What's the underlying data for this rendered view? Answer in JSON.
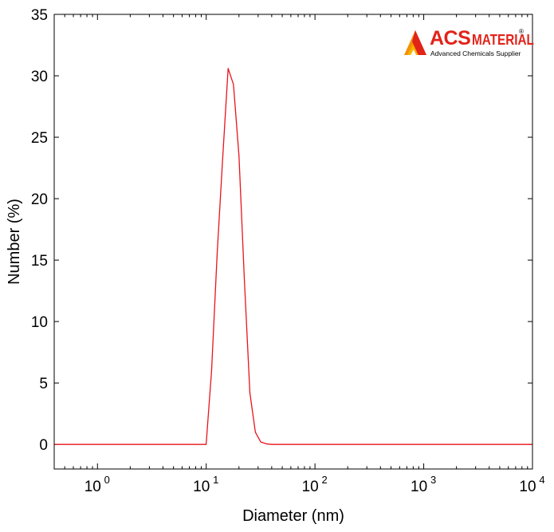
{
  "chart_data": {
    "type": "line",
    "xscale": "log",
    "xlim": [
      0.4,
      10000
    ],
    "ylim": [
      -2,
      35
    ],
    "xlabel": "Diameter (nm)",
    "ylabel": "Number (%)",
    "grid": false,
    "x_ticks": [
      {
        "value": 1,
        "base": "10",
        "exp": "0"
      },
      {
        "value": 10,
        "base": "10",
        "exp": "1"
      },
      {
        "value": 100,
        "base": "10",
        "exp": "2"
      },
      {
        "value": 1000,
        "base": "10",
        "exp": "3"
      },
      {
        "value": 10000,
        "base": "10",
        "exp": "4"
      }
    ],
    "y_ticks": [
      0,
      5,
      10,
      15,
      20,
      25,
      30,
      35
    ],
    "series": [
      {
        "color": "#e8141b",
        "x": [
          0.4,
          9.98,
          11.2,
          12.6,
          14.1,
          15.9,
          17.8,
          20.0,
          22.4,
          25.2,
          28.3,
          31.7,
          35.6,
          39.9,
          100,
          1000,
          10000
        ],
        "y": [
          0,
          0,
          6.0,
          15.5,
          23.0,
          30.6,
          29.3,
          23.5,
          13.5,
          4.2,
          1.0,
          0.2,
          0.05,
          0,
          0,
          0,
          0
        ]
      }
    ]
  },
  "logo": {
    "brand_main": "ACS",
    "brand_secondary": "MATERIAL",
    "registered_mark": "®",
    "tagline": "Advanced Chemicals Supplier",
    "colors": {
      "red": "#e2231a",
      "orange": "#f39200",
      "yellow": "#f7b500"
    }
  }
}
